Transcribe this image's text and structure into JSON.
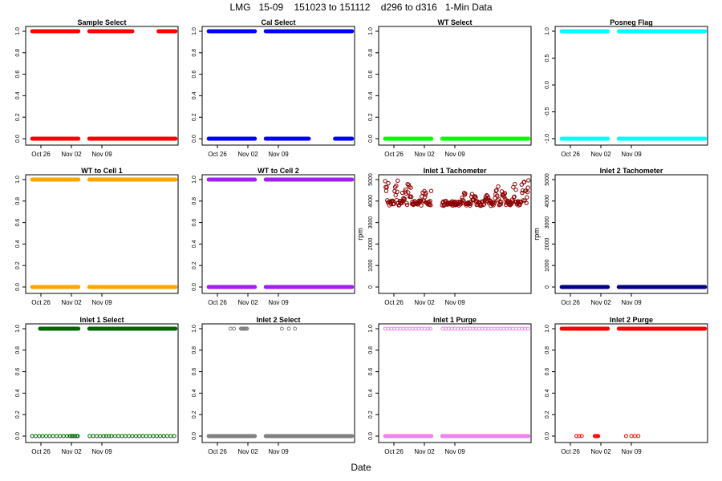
{
  "title": "LMG   15-09    151023 to 151112    d296 to d316   1-Min Data",
  "xlabel": "Date",
  "x_tick_labels": [
    "Oct 26",
    "Nov 02",
    "Nov 09"
  ],
  "chart_data": [
    {
      "type": "scatter",
      "title": "Sample Select",
      "color": "#ff0000",
      "marker": "filled",
      "ylim": [
        0,
        1
      ],
      "yticks": [
        "0.0",
        "0.2",
        "0.4",
        "0.6",
        "0.8",
        "1.0"
      ],
      "ylabel": "",
      "series": [
        {
          "y": 1,
          "ranges": [
            [
              24.0,
              34.6
            ],
            [
              37.1,
              47.0
            ],
            [
              53.0,
              56.9
            ]
          ]
        },
        {
          "y": 0,
          "ranges": [
            [
              24.0,
              34.6
            ],
            [
              37.1,
              56.9
            ]
          ]
        }
      ]
    },
    {
      "type": "scatter",
      "title": "Cal Select",
      "color": "#0000ff",
      "marker": "filled",
      "ylim": [
        0,
        1
      ],
      "yticks": [
        "0.0",
        "0.2",
        "0.4",
        "0.6",
        "0.8",
        "1.0"
      ],
      "ylabel": "",
      "series": [
        {
          "y": 1,
          "ranges": [
            [
              24.0,
              34.6
            ],
            [
              37.1,
              56.9
            ]
          ]
        },
        {
          "y": 0,
          "ranges": [
            [
              24.0,
              34.6
            ],
            [
              37.1,
              47.0
            ],
            [
              53.0,
              56.9
            ]
          ]
        }
      ]
    },
    {
      "type": "scatter",
      "title": "WT Select",
      "color": "#00ff00",
      "marker": "filled",
      "ylim": [
        0,
        1
      ],
      "yticks": [
        "0.0",
        "0.2",
        "0.4",
        "0.6",
        "0.8",
        "1.0"
      ],
      "ylabel": "",
      "series": [
        {
          "y": 0,
          "ranges": [
            [
              24.0,
              34.6
            ],
            [
              37.1,
              56.9
            ]
          ]
        }
      ]
    },
    {
      "type": "scatter",
      "title": "Posneg Flag",
      "color": "#00ffff",
      "marker": "filled",
      "ylim": [
        -1,
        1
      ],
      "yticks": [
        "-1.0",
        "-0.5",
        "0.0",
        "0.5",
        "1.0"
      ],
      "ylabel": "",
      "series": [
        {
          "y": 1,
          "ranges": [
            [
              24.0,
              34.6
            ],
            [
              37.1,
              56.9
            ]
          ]
        },
        {
          "y": -1,
          "ranges": [
            [
              24.0,
              34.6
            ],
            [
              37.1,
              56.9
            ]
          ]
        }
      ]
    },
    {
      "type": "scatter",
      "title": "WT to Cell 1",
      "color": "#ffa500",
      "marker": "filled",
      "ylim": [
        0,
        1
      ],
      "yticks": [
        "0.0",
        "0.2",
        "0.4",
        "0.6",
        "0.8",
        "1.0"
      ],
      "ylabel": "",
      "series": [
        {
          "y": 1,
          "ranges": [
            [
              24.0,
              34.6
            ],
            [
              37.1,
              56.9
            ]
          ]
        },
        {
          "y": 0,
          "ranges": [
            [
              24.0,
              34.6
            ],
            [
              37.1,
              56.9
            ]
          ]
        }
      ]
    },
    {
      "type": "scatter",
      "title": "WT to Cell 2",
      "color": "#a020f0",
      "marker": "filled",
      "ylim": [
        0,
        1
      ],
      "yticks": [
        "0.0",
        "0.2",
        "0.4",
        "0.6",
        "0.8",
        "1.0"
      ],
      "ylabel": "",
      "series": [
        {
          "y": 1,
          "ranges": [
            [
              24.0,
              34.6
            ],
            [
              37.1,
              56.9
            ]
          ]
        },
        {
          "y": 0,
          "ranges": [
            [
              24.0,
              34.6
            ],
            [
              37.1,
              56.9
            ]
          ]
        }
      ]
    },
    {
      "type": "scatter",
      "title": "Inlet 1 Tachometer",
      "color": "#8b0000",
      "marker": "noisy",
      "ylim": [
        0,
        5000
      ],
      "yticks": [
        "0",
        "1000",
        "2000",
        "3000",
        "4000",
        "5000"
      ],
      "ylabel": "rpm",
      "series": [
        {
          "base": 3900,
          "spread": 250,
          "peaks": [
            [
              24.3,
              5000
            ],
            [
              26.6,
              5000
            ],
            [
              28.4,
              4600
            ],
            [
              29.6,
              4800
            ],
            [
              32.9,
              4550
            ],
            [
              35.0,
              4500
            ],
            [
              41.9,
              4450
            ],
            [
              44.3,
              4350
            ],
            [
              47.4,
              4300
            ],
            [
              49.6,
              4700
            ],
            [
              51.2,
              4600
            ],
            [
              53.6,
              4850
            ],
            [
              55.7,
              5000
            ],
            [
              56.6,
              5000
            ]
          ],
          "ranges": [
            [
              24.0,
              34.6
            ],
            [
              37.1,
              56.9
            ]
          ]
        }
      ]
    },
    {
      "type": "scatter",
      "title": "Inlet 2 Tachometer",
      "color": "#000080",
      "marker": "filled",
      "ylim": [
        0,
        5000
      ],
      "yticks": [
        "0",
        "1000",
        "2000",
        "3000",
        "4000",
        "5000"
      ],
      "ylabel": "rpm",
      "series": [
        {
          "y": 0,
          "ranges": [
            [
              24.0,
              34.6
            ],
            [
              37.1,
              56.9
            ]
          ]
        }
      ]
    },
    {
      "type": "scatter",
      "title": "Inlet 1 Select",
      "color": "#006400",
      "marker": "mixed",
      "ylim": [
        0,
        1
      ],
      "yticks": [
        "0.0",
        "0.2",
        "0.4",
        "0.6",
        "0.8",
        "1.0"
      ],
      "ylabel": "",
      "series": [
        {
          "y": 1,
          "ranges": [
            [
              25.8,
              34.6
            ],
            [
              37.1,
              56.9
            ]
          ]
        },
        {
          "y": 0,
          "points": [
            24.0,
            24.8,
            25.6,
            26.4,
            27.2,
            28.0,
            28.8,
            29.6,
            30.4,
            31.2,
            32.0,
            32.6,
            33.0,
            33.4,
            33.8,
            34.2,
            34.5,
            37.2,
            38.0,
            38.8,
            39.6,
            40.4,
            41.0,
            41.6,
            42.2,
            43.0,
            43.8,
            44.6,
            45.4,
            46.2,
            47.0,
            47.8,
            48.6,
            49.4,
            50.2,
            51.0,
            51.8,
            52.6,
            53.4,
            54.2,
            55.0,
            55.8,
            56.6
          ]
        }
      ]
    },
    {
      "type": "scatter",
      "title": "Inlet 2 Select",
      "color": "#808080",
      "marker": "mixed",
      "ylim": [
        0,
        1
      ],
      "yticks": [
        "0.0",
        "0.2",
        "0.4",
        "0.6",
        "0.8",
        "1.0"
      ],
      "ylabel": "",
      "series": [
        {
          "y": 0,
          "ranges": [
            [
              24.0,
              34.6
            ],
            [
              37.1,
              56.9
            ]
          ]
        },
        {
          "y": 1,
          "points": [
            29.0,
            29.8,
            31.4,
            31.6,
            31.8,
            32.0,
            32.2,
            32.4,
            32.6,
            32.8,
            40.8,
            42.4,
            43.8
          ]
        }
      ]
    },
    {
      "type": "scatter",
      "title": "Inlet 1 Purge",
      "color": "#ee82ee",
      "marker": "mixed",
      "ylim": [
        0,
        1
      ],
      "yticks": [
        "0.0",
        "0.2",
        "0.4",
        "0.6",
        "0.8",
        "1.0"
      ],
      "ylabel": "",
      "series": [
        {
          "y": 0,
          "ranges": [
            [
              24.0,
              34.6
            ],
            [
              37.1,
              56.9
            ]
          ]
        },
        {
          "y": 1,
          "points": [
            24.0,
            24.7,
            25.4,
            26.1,
            26.8,
            27.5,
            28.2,
            28.9,
            29.6,
            30.3,
            31.0,
            31.7,
            32.4,
            33.1,
            33.8,
            34.4,
            37.2,
            37.9,
            38.6,
            39.3,
            40.0,
            40.7,
            41.4,
            42.1,
            42.8,
            43.5,
            44.2,
            44.9,
            45.6,
            46.3,
            47.0,
            47.7,
            48.4,
            49.1,
            49.8,
            50.5,
            51.2,
            51.9,
            52.6,
            53.3,
            54.0,
            54.7,
            55.4,
            56.1,
            56.8
          ]
        }
      ]
    },
    {
      "type": "scatter",
      "title": "Inlet 2 Purge",
      "color": "#ff0000",
      "marker": "mixed",
      "ylim": [
        0,
        1
      ],
      "yticks": [
        "0.0",
        "0.2",
        "0.4",
        "0.6",
        "0.8",
        "1.0"
      ],
      "ylabel": "",
      "series": [
        {
          "y": 1,
          "ranges": [
            [
              24.0,
              34.6
            ],
            [
              37.1,
              56.9
            ]
          ]
        },
        {
          "y": 0,
          "points": [
            27.4,
            28.0,
            28.6,
            31.6,
            31.8,
            32.0,
            32.2,
            32.4,
            38.8,
            40.0,
            40.8,
            41.6
          ]
        }
      ]
    }
  ]
}
